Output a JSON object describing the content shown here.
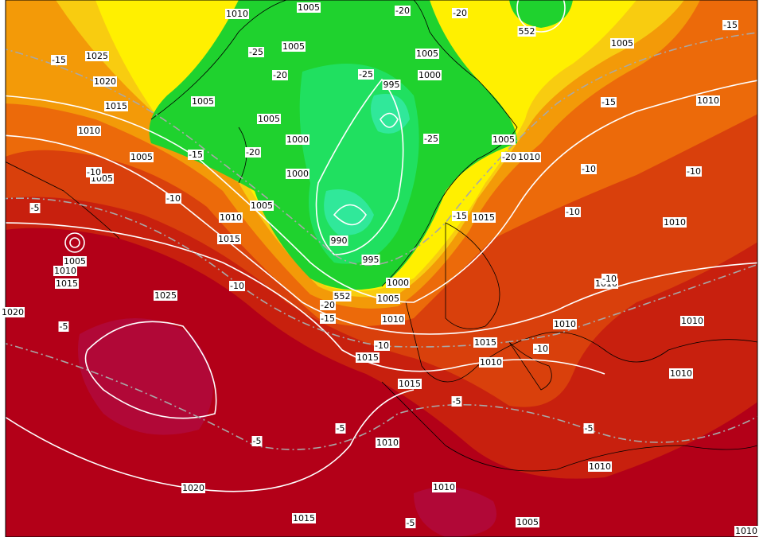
{
  "isobar_labels": [
    "1010",
    "1005",
    "1025",
    "1020",
    "1015",
    "1010",
    "1005",
    "1005",
    "1005",
    "1005",
    "1000",
    "995",
    "1005",
    "1005",
    "1000",
    "1000",
    "1005",
    "1010",
    "1015",
    "990",
    "995",
    "1000",
    "1005",
    "1010",
    "1015",
    "1015",
    "1015",
    "1010",
    "1010",
    "1015",
    "1005",
    "1010",
    "1005",
    "1010",
    "1010",
    "1010",
    "1010",
    "1010",
    "1010",
    "1010",
    "1005",
    "1015",
    "1020",
    "1025",
    "1005",
    "1010",
    "1015",
    "1020",
    "1010",
    "1010",
    "552",
    "552"
  ],
  "isotherm_labels": [
    "-20",
    "-20",
    "-15",
    "-15",
    "-25",
    "-20",
    "-25",
    "-25",
    "-20",
    "-15",
    "-20",
    "-10",
    "-10",
    "-5",
    "-15",
    "-10",
    "-10",
    "-10",
    "-15",
    "-10",
    "-20",
    "-15",
    "-10",
    "-10",
    "-5",
    "-5",
    "-5",
    "-5",
    "-5",
    "-5",
    "-10"
  ]
}
